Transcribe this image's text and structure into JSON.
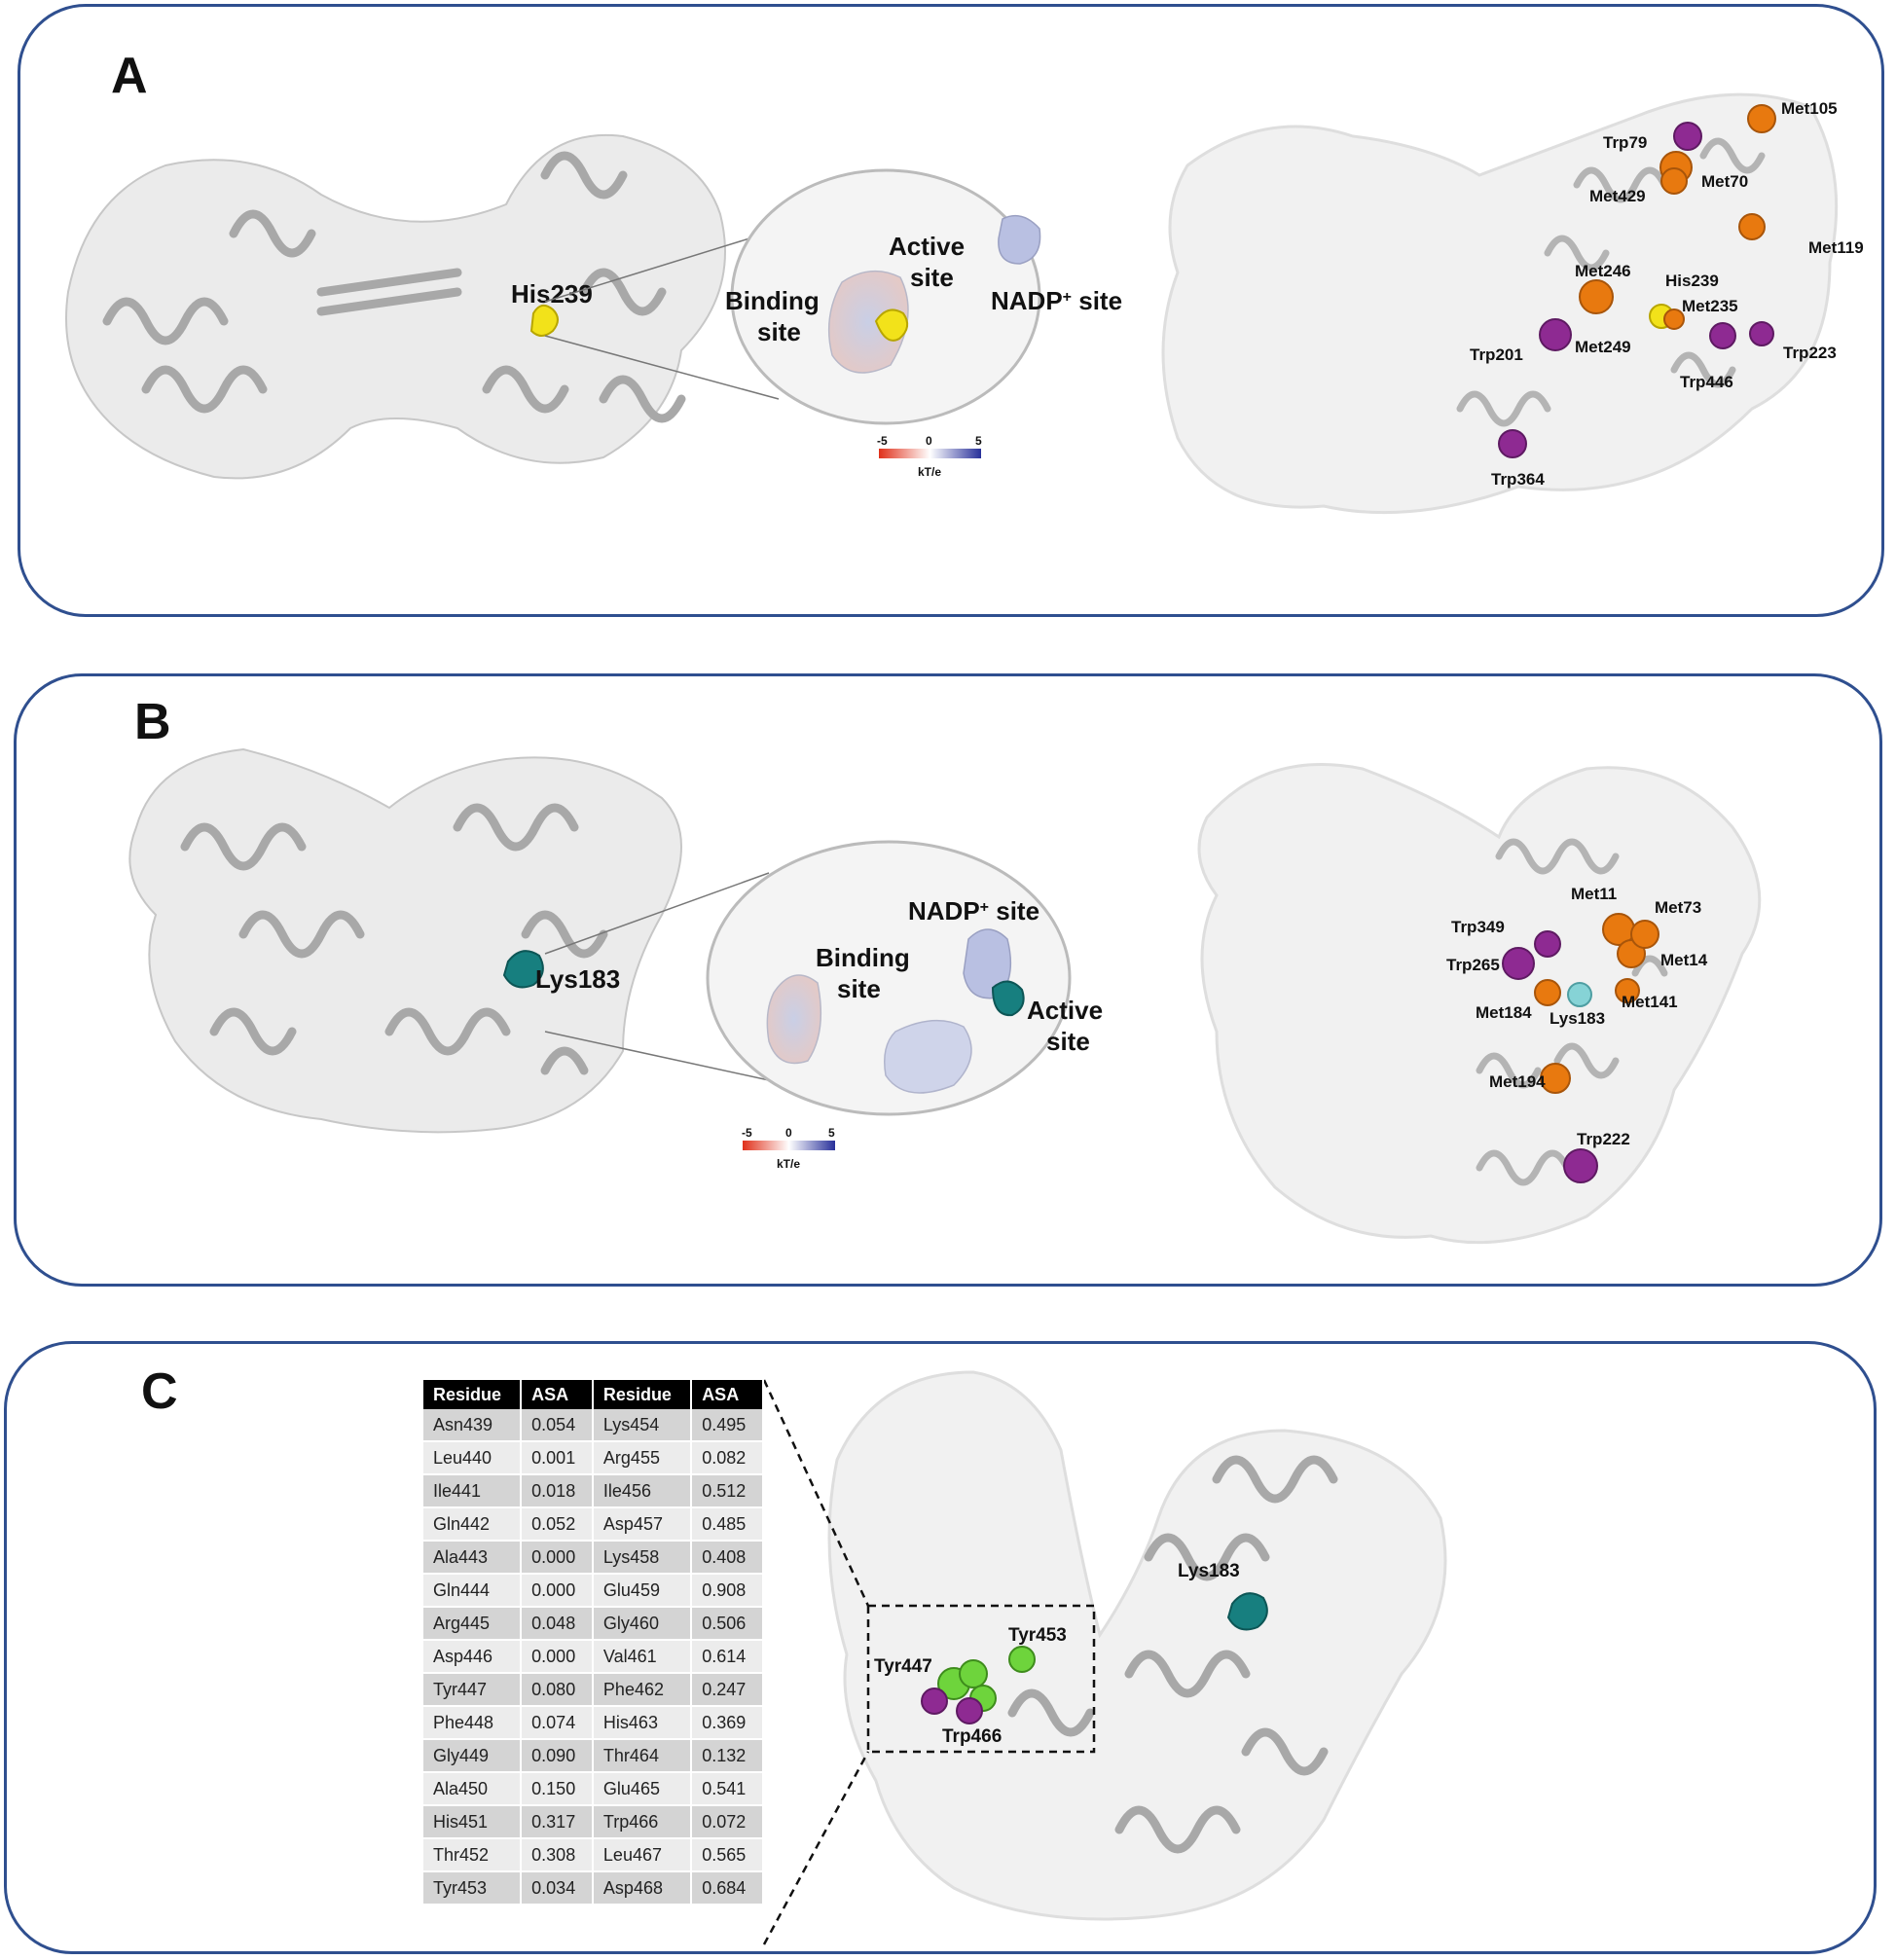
{
  "panels": {
    "a": {
      "letter": "A",
      "left_labels": {
        "his": "His239"
      },
      "inset": {
        "binding": [
          "Binding",
          "site"
        ],
        "active": [
          "Active",
          "site"
        ],
        "nadp_base": "NADP",
        "nadp_sup": "+",
        "nadp_rest": " site"
      },
      "scale": {
        "min": "-5",
        "mid": "0",
        "max": "5",
        "unit": "kT/e"
      },
      "residues": [
        "Met105",
        "Trp79",
        "Met429",
        "Met70",
        "Met119",
        "Met246",
        "His239",
        "Met235",
        "Trp201",
        "Met249",
        "Trp223",
        "Trp446",
        "Trp364"
      ]
    },
    "b": {
      "letter": "B",
      "left_labels": {
        "lys": "Lys183"
      },
      "inset": {
        "binding": [
          "Binding",
          "site"
        ],
        "active": [
          "Active",
          "site"
        ],
        "nadp_base": "NADP",
        "nadp_sup": "+",
        "nadp_rest": " site"
      },
      "scale": {
        "min": "-5",
        "mid": "0",
        "max": "5",
        "unit": "kT/e"
      },
      "residues": [
        "Met11",
        "Met73",
        "Trp349",
        "Trp265",
        "Met14",
        "Met184",
        "Lys183",
        "Met141",
        "Met194",
        "Trp222"
      ]
    },
    "c": {
      "letter": "C",
      "table": {
        "headers": [
          "Residue",
          "ASA",
          "Residue",
          "ASA"
        ],
        "rows": [
          [
            "Asn439",
            "0.054",
            "Lys454",
            "0.495"
          ],
          [
            "Leu440",
            "0.001",
            "Arg455",
            "0.082"
          ],
          [
            "Ile441",
            "0.018",
            "Ile456",
            "0.512"
          ],
          [
            "Gln442",
            "0.052",
            "Asp457",
            "0.485"
          ],
          [
            "Ala443",
            "0.000",
            "Lys458",
            "0.408"
          ],
          [
            "Gln444",
            "0.000",
            "Glu459",
            "0.908"
          ],
          [
            "Arg445",
            "0.048",
            "Gly460",
            "0.506"
          ],
          [
            "Asp446",
            "0.000",
            "Val461",
            "0.614"
          ],
          [
            "Tyr447",
            "0.080",
            "Phe462",
            "0.247"
          ],
          [
            "Phe448",
            "0.074",
            "His463",
            "0.369"
          ],
          [
            "Gly449",
            "0.090",
            "Thr464",
            "0.132"
          ],
          [
            "Ala450",
            "0.150",
            "Glu465",
            "0.541"
          ],
          [
            "His451",
            "0.317",
            "Trp466",
            "0.072"
          ],
          [
            "Thr452",
            "0.308",
            "Leu467",
            "0.565"
          ],
          [
            "Tyr453",
            "0.034",
            "Asp468",
            "0.684"
          ]
        ]
      },
      "residues": [
        "Lys183",
        "Tyr453",
        "Tyr447",
        "Trp466"
      ]
    }
  },
  "colors": {
    "frame": "#2f4f8f",
    "ribbon": "#c8c8c8",
    "surface": "#eeeeee",
    "his": "#f2e21a",
    "met": "#e8790f",
    "trp": "#8e2a92",
    "lys": "#177f7f",
    "lys_light": "#86d3d6",
    "tyr": "#6ed43c"
  }
}
